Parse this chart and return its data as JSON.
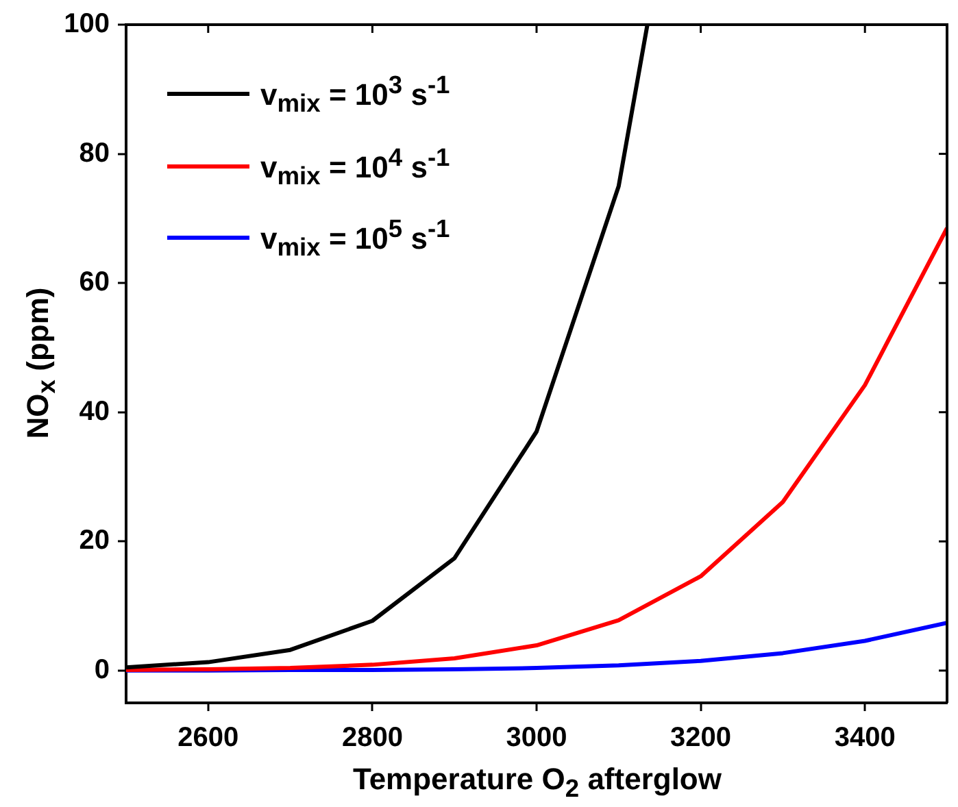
{
  "chart_data": {
    "type": "line",
    "xlabel": "Temperature O$_{2}$ afterglow",
    "ylabel": "NO$_{x}$ (ppm)",
    "x": [
      2500,
      2600,
      2700,
      2800,
      2900,
      3000,
      3100,
      3200,
      3300,
      3400,
      3500
    ],
    "series": [
      {
        "name": "v$_{mix}$ = 10$^{3}$ s$^{-1}$",
        "color": "#000000",
        "x": [
          2500,
          2600,
          2700,
          2800,
          2900,
          3000,
          3100,
          3135
        ],
        "values": [
          0.5,
          1.3,
          3.2,
          7.7,
          17.4,
          37,
          75,
          100
        ]
      },
      {
        "name": "v$_{mix}$ = 10$^{4}$ s$^{-1}$",
        "color": "#ff0000",
        "values": [
          0.1,
          0.2,
          0.4,
          0.9,
          1.9,
          3.9,
          7.8,
          14.6,
          26.1,
          44.2,
          68.5
        ]
      },
      {
        "name": "v$_{mix}$ = 10$^{5}$ s$^{-1}$",
        "color": "#0000ff",
        "values": [
          0,
          0,
          0.1,
          0.1,
          0.2,
          0.4,
          0.8,
          1.5,
          2.7,
          4.6,
          7.4
        ]
      }
    ],
    "xlim": [
      2500,
      3500
    ],
    "xticks": [
      2600,
      2800,
      3000,
      3200,
      3400
    ],
    "ylim": [
      -5,
      100
    ],
    "yticks": [
      0,
      20,
      40,
      60,
      80,
      100
    ],
    "grid": false,
    "legend": "top left",
    "marker": "none",
    "line_style": "solid"
  }
}
